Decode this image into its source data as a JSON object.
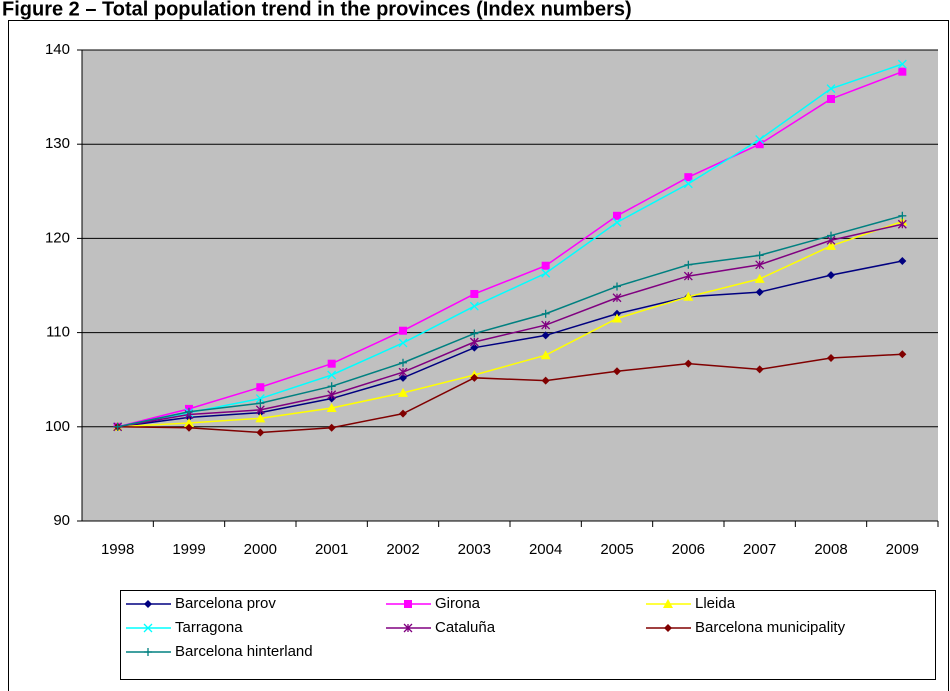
{
  "chart_data": {
    "type": "line",
    "title": "Figure 2 – Total population trend in the provinces (Index numbers)",
    "categories": [
      "1998",
      "1999",
      "2000",
      "2001",
      "2002",
      "2003",
      "2004",
      "2005",
      "2006",
      "2007",
      "2008",
      "2009"
    ],
    "ylim": [
      90,
      140
    ],
    "yticks": [
      90,
      100,
      110,
      120,
      130,
      140
    ],
    "grid": true,
    "series": [
      {
        "name": "Barcelona prov",
        "color": "#000080",
        "marker": "diamond",
        "values": [
          100,
          101,
          101.5,
          103,
          105.2,
          108.4,
          109.7,
          112,
          113.8,
          114.3,
          116.1,
          117.6
        ]
      },
      {
        "name": "Girona",
        "color": "#ff00ff",
        "marker": "square",
        "values": [
          100,
          101.9,
          104.2,
          106.7,
          110.2,
          114.1,
          117.1,
          122.4,
          126.5,
          130,
          134.8,
          137.7
        ]
      },
      {
        "name": "Lleida",
        "color": "#ffff00",
        "marker": "triangle",
        "values": [
          100,
          100.4,
          100.9,
          102,
          103.6,
          105.5,
          107.6,
          111.5,
          113.8,
          115.7,
          119.2,
          121.8
        ]
      },
      {
        "name": "Tarragona",
        "color": "#00ffff",
        "marker": "x",
        "values": [
          100,
          101.5,
          103,
          105.5,
          108.9,
          112.8,
          116.3,
          121.7,
          125.8,
          130.5,
          135.9,
          138.5
        ]
      },
      {
        "name": "Cataluña",
        "color": "#800080",
        "marker": "star",
        "values": [
          100,
          101.3,
          101.8,
          103.4,
          105.8,
          109,
          110.8,
          113.7,
          116,
          117.2,
          119.8,
          121.5
        ]
      },
      {
        "name": "Barcelona municipality",
        "color": "#800000",
        "marker": "diamond",
        "values": [
          100,
          99.9,
          99.4,
          99.9,
          101.4,
          105.2,
          104.9,
          105.9,
          106.7,
          106.1,
          107.3,
          107.7
        ]
      },
      {
        "name": "Barcelona hinterland",
        "color": "#008080",
        "marker": "plus",
        "values": [
          100,
          101.6,
          102.5,
          104.3,
          106.8,
          109.9,
          112,
          114.9,
          117.2,
          118.2,
          120.3,
          122.4
        ]
      }
    ]
  }
}
